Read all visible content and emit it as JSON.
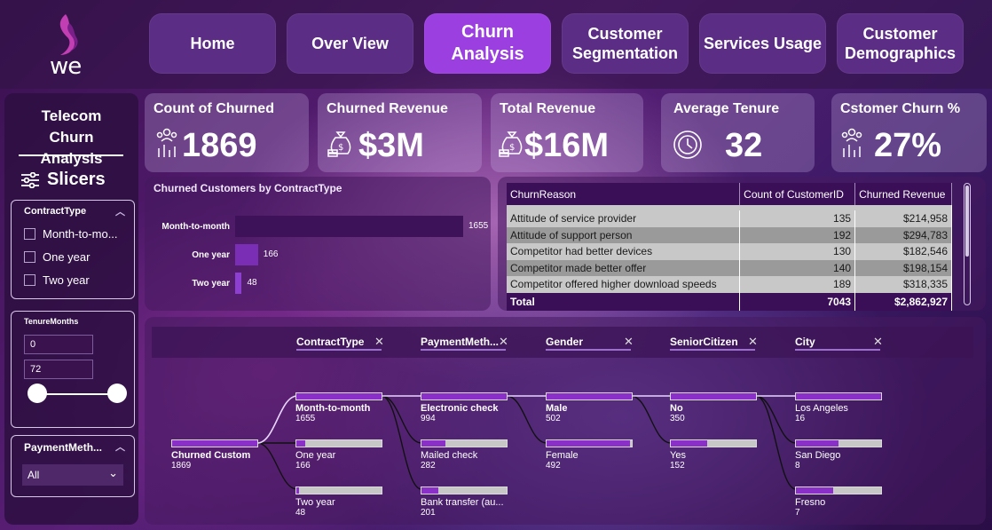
{
  "nav": {
    "logo_text": "we",
    "items": [
      {
        "label": "Home"
      },
      {
        "label": "Over View"
      },
      {
        "label": "Churn Analysis"
      },
      {
        "label": "Customer Segmentation"
      },
      {
        "label": "Services Usage"
      },
      {
        "label": "Customer Demographics"
      }
    ],
    "active": "Churn Analysis"
  },
  "sidebar": {
    "title": "Telecom Churn Analysis",
    "slicers_label": "Slicers",
    "contract_type": {
      "title": "ContractType",
      "options": [
        "Month-to-mo...",
        "One year",
        "Two year"
      ]
    },
    "tenure": {
      "title": "TenureMonths",
      "min_value": "0",
      "max_value": "72"
    },
    "payment": {
      "title": "PaymentMeth...",
      "selected": "All"
    }
  },
  "kpis": [
    {
      "title": "Count of Churned",
      "value": "1869",
      "icon": "people-chart-icon"
    },
    {
      "title": "Churned Revenue",
      "value": "$3M",
      "icon": "money-bag-icon"
    },
    {
      "title": "Total Revenue",
      "value": "$16M",
      "icon": "money-bag-icon"
    },
    {
      "title": "Average Tenure",
      "value": "32",
      "icon": "clock-icon"
    },
    {
      "title": "Cstomer Churn %",
      "value": "27%",
      "icon": "people-chart-icon"
    }
  ],
  "chart_data": {
    "type": "bar",
    "orientation": "horizontal",
    "title": "Churned Customers by ContractType",
    "categories": [
      "Month-to-month",
      "One year",
      "Two year"
    ],
    "values": [
      1655,
      166,
      48
    ],
    "xlim": [
      0,
      1655
    ],
    "grid": false,
    "legend": "none",
    "colors": [
      "#3e1258",
      "#7a2db5",
      "#8c3fd0"
    ]
  },
  "table": {
    "columns": [
      "ChurnReason",
      "Count of CustomerID",
      "Churned Revenue"
    ],
    "rows": [
      [
        "Attitude of service provider",
        "135",
        "$214,958"
      ],
      [
        "Attitude of support person",
        "192",
        "$294,783"
      ],
      [
        "Competitor had better devices",
        "130",
        "$182,546"
      ],
      [
        "Competitor made better offer",
        "140",
        "$198,154"
      ],
      [
        "Competitor offered higher download speeds",
        "189",
        "$318,335"
      ]
    ],
    "total": [
      "Total",
      "7043",
      "$2,862,927"
    ]
  },
  "tree": {
    "columns": [
      "ContractType",
      "PaymentMeth...",
      "Gender",
      "SeniorCitizen",
      "City"
    ],
    "root": {
      "label": "Churned Custom",
      "value": "1869",
      "fill": 1.0
    },
    "contract": [
      {
        "label": "Month-to-month",
        "value": "1655",
        "fill": 1.0,
        "bold": true
      },
      {
        "label": "One year",
        "value": "166",
        "fill": 0.1
      },
      {
        "label": "Two year",
        "value": "48",
        "fill": 0.03
      }
    ],
    "payment": [
      {
        "label": "Electronic check",
        "value": "994",
        "fill": 1.0,
        "bold": true
      },
      {
        "label": "Mailed check",
        "value": "282",
        "fill": 0.28
      },
      {
        "label": "Bank transfer (au...",
        "value": "201",
        "fill": 0.2
      }
    ],
    "gender": [
      {
        "label": "Male",
        "value": "502",
        "fill": 1.0,
        "bold": true
      },
      {
        "label": "Female",
        "value": "492",
        "fill": 0.98
      }
    ],
    "senior": [
      {
        "label": "No",
        "value": "350",
        "fill": 1.0,
        "bold": true
      },
      {
        "label": "Yes",
        "value": "152",
        "fill": 0.43
      }
    ],
    "city": [
      {
        "label": "Los Angeles",
        "value": "16",
        "fill": 1.0
      },
      {
        "label": "San Diego",
        "value": "8",
        "fill": 0.5
      },
      {
        "label": "Fresno",
        "value": "7",
        "fill": 0.44
      }
    ]
  }
}
